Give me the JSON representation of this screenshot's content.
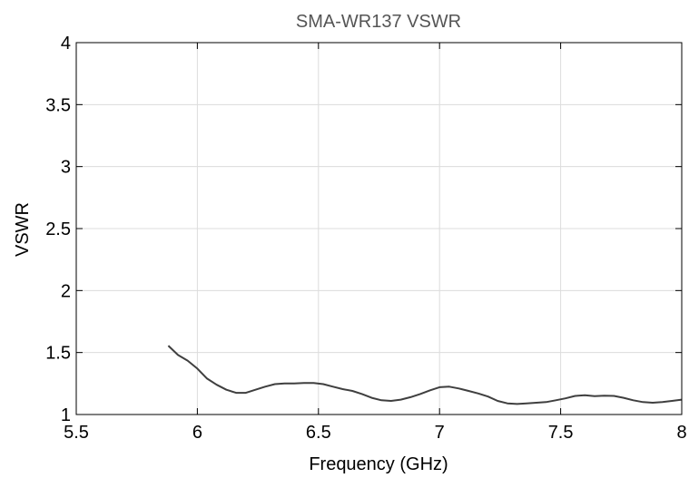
{
  "chart_data": {
    "type": "line",
    "title": "SMA-WR137 VSWR",
    "xlabel": "Frequency (GHz)",
    "ylabel": "VSWR",
    "xlim": [
      5.5,
      8
    ],
    "ylim": [
      1,
      4
    ],
    "xticks": [
      5.5,
      6,
      6.5,
      7,
      7.5,
      8
    ],
    "xtick_labels": [
      "5.5",
      "6",
      "6.5",
      "7",
      "7.5",
      "8"
    ],
    "yticks": [
      1,
      1.5,
      2,
      2.5,
      3,
      3.5,
      4
    ],
    "ytick_labels": [
      "1",
      "1.5",
      "2",
      "2.5",
      "3",
      "3.5",
      "4"
    ],
    "grid": true,
    "colors": {
      "line": "#3f3f3f",
      "grid": "#dcdcdc",
      "axis": "#000000",
      "title": "#555555"
    },
    "series": [
      {
        "x": [
          5.88,
          5.92,
          5.96,
          6.0,
          6.04,
          6.08,
          6.12,
          6.16,
          6.2,
          6.24,
          6.28,
          6.32,
          6.36,
          6.4,
          6.44,
          6.48,
          6.52,
          6.56,
          6.6,
          6.64,
          6.68,
          6.72,
          6.76,
          6.8,
          6.84,
          6.88,
          6.92,
          6.96,
          7.0,
          7.04,
          7.08,
          7.12,
          7.16,
          7.2,
          7.24,
          7.28,
          7.32,
          7.36,
          7.4,
          7.44,
          7.48,
          7.52,
          7.56,
          7.6,
          7.64,
          7.68,
          7.72,
          7.76,
          7.8,
          7.84,
          7.88,
          7.92,
          7.96,
          8.0
        ],
        "y": [
          1.555,
          1.48,
          1.435,
          1.37,
          1.29,
          1.24,
          1.2,
          1.175,
          1.175,
          1.2,
          1.225,
          1.245,
          1.25,
          1.25,
          1.255,
          1.255,
          1.245,
          1.225,
          1.205,
          1.19,
          1.165,
          1.135,
          1.115,
          1.11,
          1.12,
          1.14,
          1.165,
          1.195,
          1.22,
          1.225,
          1.21,
          1.19,
          1.17,
          1.145,
          1.11,
          1.09,
          1.085,
          1.09,
          1.095,
          1.1,
          1.115,
          1.13,
          1.15,
          1.155,
          1.148,
          1.152,
          1.15,
          1.135,
          1.115,
          1.1,
          1.095,
          1.1,
          1.11,
          1.12
        ]
      }
    ]
  }
}
